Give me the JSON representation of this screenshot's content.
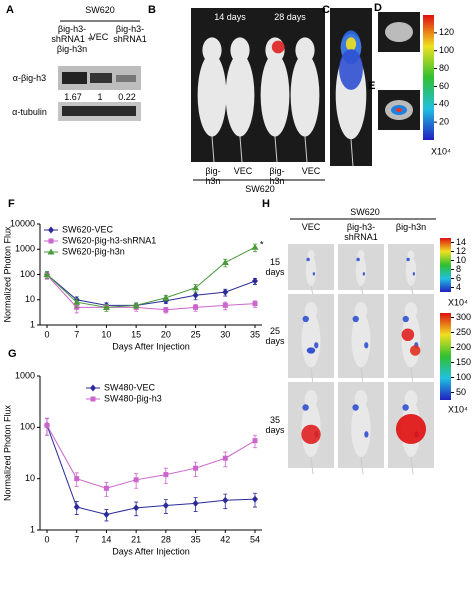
{
  "panel_labels": [
    "A",
    "B",
    "C",
    "D",
    "E",
    "F",
    "G",
    "H"
  ],
  "panel_a": {
    "cell_line": "SW620",
    "columns": [
      "βig-h3-shRNA1 + βig-h3n",
      "VEC",
      "βig-h3-shRNA1"
    ],
    "rows": [
      "α-βig-h3",
      "α-tubulin"
    ],
    "ratios": [
      1.67,
      1,
      0.22
    ]
  },
  "panel_b": {
    "timepoints": [
      "14 days",
      "28 days"
    ],
    "groups": [
      "βig-h3n",
      "VEC",
      "βig-h3n",
      "VEC"
    ],
    "cell_line": "SW620"
  },
  "colorbar_b": {
    "range": [
      0,
      140
    ],
    "ticks": [
      120,
      100,
      80,
      60,
      40,
      20
    ],
    "unit": "X10⁴"
  },
  "panel_h": {
    "cell_line": "SW620",
    "columns": [
      "VEC",
      "βig-h3-shRNA1",
      "βig-h3n"
    ],
    "rows": [
      "15 days",
      "25 days",
      "35 days"
    ],
    "colorbars": [
      {
        "range": [
          3,
          15
        ],
        "ticks": [
          14,
          12,
          10,
          8,
          6,
          4
        ],
        "unit": "X10⁴"
      },
      {
        "range": [
          25,
          315
        ],
        "ticks": [
          300,
          250,
          200,
          150,
          100,
          50
        ],
        "unit": "X10⁴"
      }
    ]
  },
  "chart_data": [
    {
      "type": "line",
      "ylabel": "Normalized Photon Flux",
      "xlabel": "Days After Injection",
      "log_y": true,
      "categories": [
        "0",
        "7",
        "10",
        "15",
        "20",
        "25",
        "30",
        "35"
      ],
      "ylim": [
        1,
        10000
      ],
      "yticks": [
        1,
        10,
        100,
        1000,
        10000
      ],
      "annotation": "*",
      "series": [
        {
          "name": "SW620-VEC",
          "color": "#2b2b9a",
          "marker": "diamond",
          "values": [
            100,
            10,
            6,
            6,
            9,
            15,
            20,
            55
          ],
          "errors": [
            30,
            3,
            1.5,
            1.5,
            2,
            5,
            6,
            15
          ]
        },
        {
          "name": "SW620-βig-h3-shRNA1",
          "color": "#cc66cc",
          "marker": "square",
          "values": [
            95,
            5,
            5,
            5,
            4,
            5,
            6,
            7
          ],
          "errors": [
            30,
            2,
            1.5,
            1.5,
            1,
            1.5,
            2,
            2
          ]
        },
        {
          "name": "SW620-βig-h3n",
          "color": "#4a9a3a",
          "marker": "triangle",
          "values": [
            100,
            8,
            5,
            6,
            12,
            30,
            300,
            1200
          ],
          "errors": [
            30,
            3,
            1.5,
            1.5,
            3,
            10,
            100,
            400
          ]
        }
      ]
    },
    {
      "type": "line",
      "ylabel": "Normalized Photon Flux",
      "xlabel": "Days After Injection",
      "log_y": true,
      "categories": [
        "0",
        "7",
        "14",
        "21",
        "28",
        "35",
        "42",
        "54"
      ],
      "ylim": [
        1,
        1000
      ],
      "yticks": [
        1,
        10,
        100,
        1000
      ],
      "series": [
        {
          "name": "SW480-VEC",
          "color": "#2b2b9a",
          "marker": "diamond",
          "values": [
            110,
            2.8,
            2.0,
            2.7,
            3.0,
            3.3,
            3.8,
            4.0
          ],
          "errors": [
            40,
            0.8,
            0.5,
            0.8,
            0.9,
            1,
            1.2,
            1.2
          ]
        },
        {
          "name": "SW480-βig-h3",
          "color": "#cc66cc",
          "marker": "square",
          "values": [
            110,
            10,
            6.5,
            9.5,
            12,
            16,
            25,
            55
          ],
          "errors": [
            40,
            3,
            2,
            3,
            4,
            5,
            8,
            15
          ]
        }
      ]
    }
  ]
}
